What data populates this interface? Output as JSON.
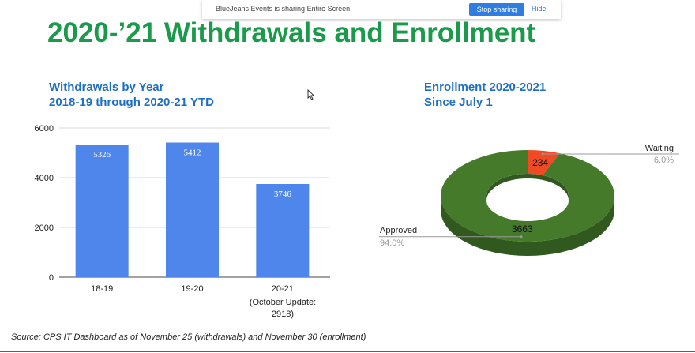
{
  "screen_share": {
    "message": "BlueJeans Events is sharing Entire Screen",
    "stop_label": "Stop sharing",
    "hide_label": "Hide"
  },
  "slide": {
    "title": "2020-’21 Withdrawals and Enrollment",
    "source": "Source: CPS IT Dashboard as of November 25 (withdrawals) and November 30 (enrollment)"
  },
  "bar_chart": {
    "title_line1": "Withdrawals by Year",
    "title_line2": "2018-19 through 2020-21 YTD",
    "note_line1": "(October Update:",
    "note_line2": "2918)"
  },
  "pie_chart": {
    "title_line1": "Enrollment 2020-2021",
    "title_line2": "Since July 1"
  },
  "chart_data": [
    {
      "type": "bar",
      "categories": [
        "18-19",
        "19-20",
        "20-21"
      ],
      "values": [
        5326,
        5412,
        3746
      ],
      "ylim": [
        0,
        6000
      ],
      "yticks": [
        0,
        2000,
        4000,
        6000
      ],
      "grid": true,
      "color": "#4f86ec"
    },
    {
      "type": "pie",
      "labels": [
        "Waiting",
        "Approved"
      ],
      "values": [
        234,
        3663
      ],
      "percents": [
        "6.0%",
        "94.0%"
      ],
      "colors": [
        "#ef4a23",
        "#447a29"
      ]
    }
  ]
}
